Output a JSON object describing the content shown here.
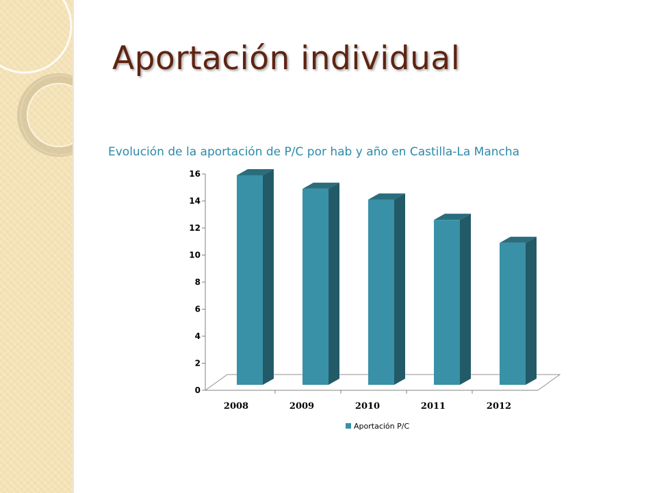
{
  "slide": {
    "title": "Aportación individual",
    "accent_color": "#5e2412",
    "strip_color": "#f4e2b6"
  },
  "chart_data": {
    "type": "bar",
    "title": "Evolución de la aportación de P/C por hab y año en Castilla-La Mancha",
    "xlabel": "",
    "ylabel": "",
    "categories": [
      "2008",
      "2009",
      "2010",
      "2011",
      "2012"
    ],
    "series": [
      {
        "name": "Aportación P/C",
        "values": [
          15.9,
          14.9,
          14.1,
          12.6,
          10.9
        ],
        "color": "#3891a7"
      }
    ],
    "ylim": [
      0,
      16
    ],
    "yticks": [
      "0",
      "2",
      "4",
      "6",
      "8",
      "10",
      "12",
      "14",
      "16"
    ],
    "grid": false,
    "legend_position": "bottom",
    "style_3d": true
  }
}
